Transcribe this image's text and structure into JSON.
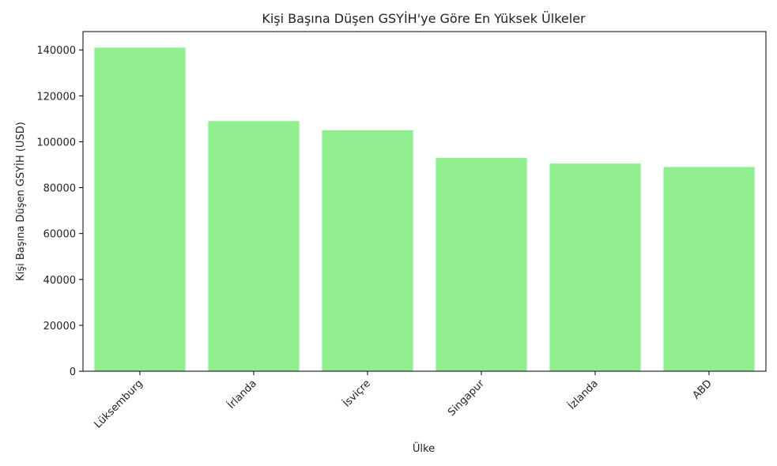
{
  "chart_data": {
    "type": "bar",
    "title": "Kişi Başına Düşen GSYİH'ye Göre En Yüksek Ülkeler",
    "xlabel": "Ülke",
    "ylabel": "Kişi Başına Düşen GSYİH (USD)",
    "categories": [
      "Lüksemburg",
      "İrlanda",
      "İsviçre",
      "Singapur",
      "İzlanda",
      "ABD"
    ],
    "values": [
      141000,
      109000,
      105000,
      93000,
      90500,
      89000
    ],
    "ylim": [
      0,
      148000
    ],
    "yticks": [
      0,
      20000,
      40000,
      60000,
      80000,
      100000,
      120000,
      140000
    ],
    "bar_color": "#90ee90",
    "grid": false
  }
}
